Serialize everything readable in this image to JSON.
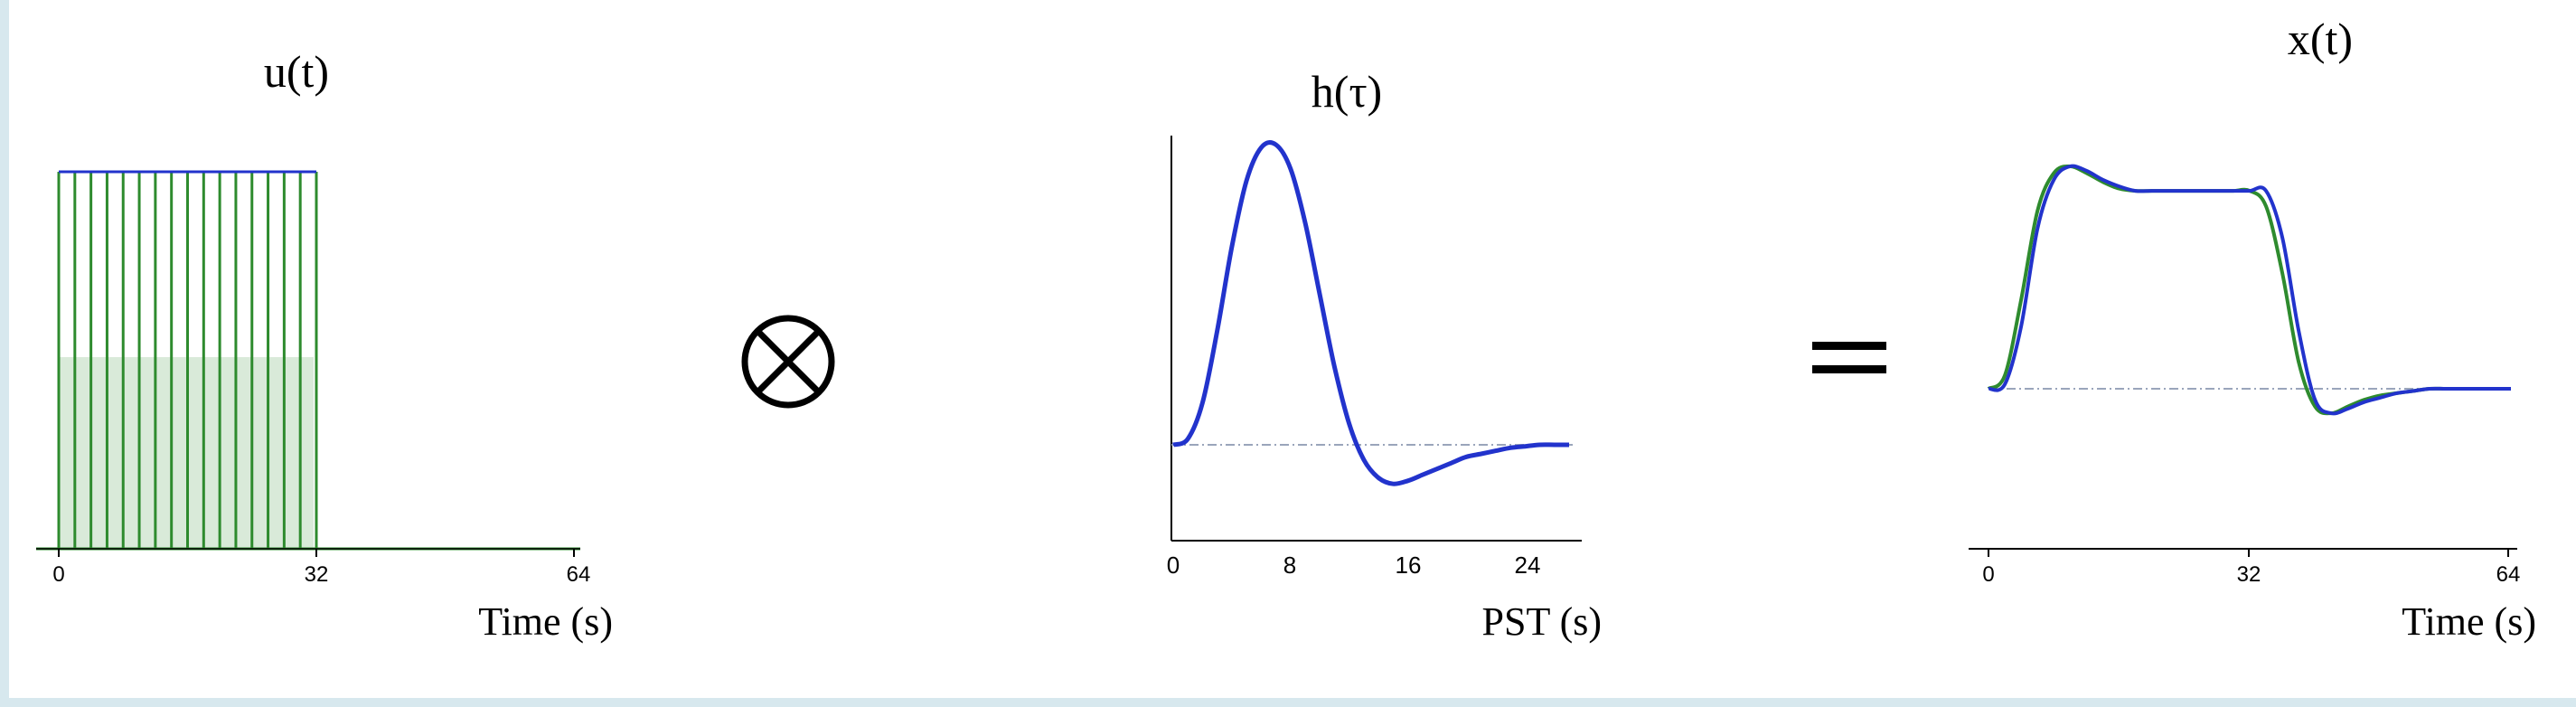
{
  "operator_convolve_icon": "circled-times-icon",
  "operator_equals": "=",
  "panels": {
    "input": {
      "title": "u(t)",
      "xlabel": "Time (s)",
      "ticks": [
        "0",
        "32",
        "64"
      ]
    },
    "hrf": {
      "title": "h(τ)",
      "xlabel": "PST (s)",
      "ticks": [
        "0",
        "8",
        "16",
        "24"
      ]
    },
    "output": {
      "title": "x(t)",
      "xlabel": "Time (s)",
      "ticks": [
        "0",
        "32",
        "64"
      ]
    }
  },
  "colors": {
    "stimulus": "#2e8b2e",
    "hrf": "#2233cc",
    "baseline": "#9aa5bb",
    "axis": "#000000"
  },
  "chart_data": [
    {
      "type": "bar",
      "title": "u(t)",
      "xlabel": "Time (s)",
      "ylabel": "",
      "xlim": [
        0,
        64
      ],
      "ylim": [
        0,
        1
      ],
      "x": [
        0,
        2,
        4,
        6,
        8,
        10,
        12,
        14,
        16,
        18,
        20,
        22,
        24,
        26,
        28,
        30,
        32
      ],
      "values": [
        1,
        1,
        1,
        1,
        1,
        1,
        1,
        1,
        1,
        1,
        1,
        1,
        1,
        1,
        1,
        1,
        1
      ]
    },
    {
      "type": "line",
      "title": "h(τ)",
      "xlabel": "PST (s)",
      "ylabel": "",
      "xlim": [
        0,
        27
      ],
      "series": [
        {
          "x": [
            0,
            1,
            2,
            3,
            4,
            5,
            6,
            7,
            8,
            9,
            10,
            11,
            12,
            13,
            14,
            15,
            16,
            17,
            18,
            19,
            20,
            21,
            22,
            23,
            24,
            25,
            26,
            27
          ],
          "values": [
            0,
            0.02,
            0.14,
            0.38,
            0.66,
            0.88,
            0.99,
            1.0,
            0.92,
            0.74,
            0.5,
            0.26,
            0.07,
            -0.05,
            -0.11,
            -0.13,
            -0.12,
            -0.1,
            -0.08,
            -0.06,
            -0.04,
            -0.03,
            -0.02,
            -0.01,
            -0.005,
            0,
            0,
            0
          ]
        }
      ]
    },
    {
      "type": "line",
      "title": "x(t)",
      "xlabel": "Time (s)",
      "ylabel": "",
      "xlim": [
        0,
        64
      ],
      "series": [
        {
          "x": [
            0,
            2,
            4,
            6,
            8,
            10,
            12,
            14,
            16,
            18,
            20,
            22,
            24,
            26,
            28,
            30,
            32,
            34,
            36,
            38,
            40,
            42,
            44,
            46,
            48,
            50,
            52,
            54,
            56,
            58,
            60,
            62,
            64
          ],
          "values": [
            0,
            0.02,
            0.28,
            0.72,
            0.94,
            1.0,
            0.98,
            0.94,
            0.91,
            0.89,
            0.89,
            0.89,
            0.89,
            0.89,
            0.89,
            0.89,
            0.89,
            0.89,
            0.68,
            0.26,
            -0.05,
            -0.11,
            -0.09,
            -0.06,
            -0.04,
            -0.02,
            -0.01,
            0,
            0,
            0,
            0,
            0,
            0
          ]
        },
        {
          "x": [
            0,
            2,
            4,
            6,
            8,
            10,
            12,
            14,
            16,
            18,
            20,
            22,
            24,
            26,
            28,
            30,
            32,
            34,
            36,
            38,
            40,
            42,
            44,
            46,
            48,
            50,
            52,
            54,
            56,
            58,
            60,
            62,
            64
          ],
          "values": [
            0,
            0.06,
            0.4,
            0.8,
            0.97,
            1.0,
            0.97,
            0.93,
            0.9,
            0.89,
            0.89,
            0.89,
            0.89,
            0.89,
            0.89,
            0.89,
            0.89,
            0.82,
            0.52,
            0.12,
            -0.08,
            -0.11,
            -0.08,
            -0.05,
            -0.03,
            -0.02,
            -0.01,
            0,
            0,
            0,
            0,
            0,
            0
          ]
        }
      ]
    }
  ]
}
